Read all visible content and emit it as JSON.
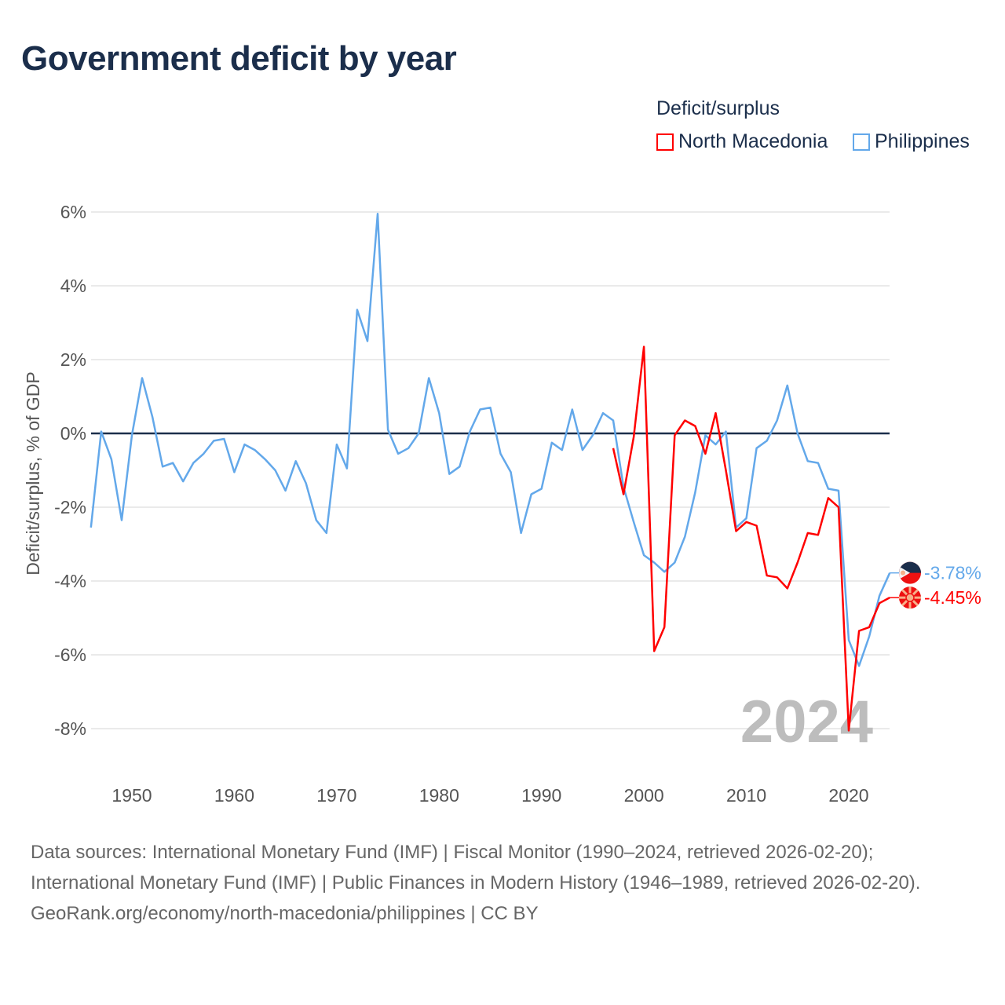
{
  "title": "Government deficit by year",
  "legend": {
    "title": "Deficit/surplus",
    "items": [
      {
        "label": "North Macedonia",
        "color": "#ff0000"
      },
      {
        "label": "Philippines",
        "color": "#63a8ea"
      }
    ]
  },
  "chart_data": {
    "type": "line",
    "title": "Government deficit by year",
    "xlabel": "",
    "ylabel": "Deficit/surplus, % of GDP",
    "ylim": [
      -9,
      6.5
    ],
    "xlim": [
      1946,
      2024
    ],
    "yticks": [
      6,
      4,
      2,
      0,
      -2,
      -4,
      -6,
      -8
    ],
    "ytick_labels": [
      "6%",
      "4%",
      "2%",
      "0%",
      "-2%",
      "-4%",
      "-6%",
      "-8%"
    ],
    "xticks": [
      1950,
      1960,
      1970,
      1980,
      1990,
      2000,
      2010,
      2020
    ],
    "xtick_labels": [
      "1950",
      "1960",
      "1970",
      "1980",
      "1990",
      "2000",
      "2010",
      "2020"
    ],
    "grid": true,
    "year_watermark": "2024",
    "series": [
      {
        "name": "Philippines",
        "color": "#63a8ea",
        "start": 1946,
        "end_label": "-3.78%",
        "values": [
          -2.55,
          0.05,
          -0.7,
          -2.35,
          -0.05,
          1.5,
          0.45,
          -0.9,
          -0.8,
          -1.3,
          -0.8,
          -0.55,
          -0.2,
          -0.15,
          -1.05,
          -0.3,
          -0.45,
          -0.7,
          -1.0,
          -1.55,
          -0.75,
          -1.35,
          -2.35,
          -2.7,
          -0.3,
          -0.95,
          3.35,
          2.5,
          5.95,
          0.1,
          -0.55,
          -0.4,
          0.0,
          1.5,
          0.55,
          -1.1,
          -0.9,
          0.05,
          0.65,
          0.7,
          -0.55,
          -1.05,
          -2.7,
          -1.65,
          -1.5,
          -0.25,
          -0.45,
          0.65,
          -0.45,
          -0.05,
          0.55,
          0.35,
          -1.45,
          -2.4,
          -3.3,
          -3.5,
          -3.75,
          -3.5,
          -2.8,
          -1.6,
          -0.05,
          -0.3,
          0.05,
          -2.55,
          -2.3,
          -0.4,
          -0.2,
          0.35,
          1.3,
          0.0,
          -0.75,
          -0.8,
          -1.5,
          -1.55,
          -5.6,
          -6.3,
          -5.5,
          -4.4,
          -3.78
        ]
      },
      {
        "name": "North Macedonia",
        "color": "#ff0000",
        "start": 1997,
        "end_label": "-4.45%",
        "values": [
          -0.4,
          -1.65,
          -0.1,
          2.35,
          -5.9,
          -5.25,
          -0.05,
          0.35,
          0.2,
          -0.55,
          0.55,
          -1.0,
          -2.65,
          -2.4,
          -2.5,
          -3.85,
          -3.9,
          -4.2,
          -3.5,
          -2.7,
          -2.75,
          -1.75,
          -2.0,
          -8.05,
          -5.35,
          -5.25,
          -4.6,
          -4.45
        ]
      }
    ]
  },
  "footer": {
    "sources": "Data sources: International Monetary Fund (IMF) | Fiscal Monitor (1990–2024, retrieved 2026-02-20); International Monetary Fund (IMF) | Public Finances in Modern History (1946–1989, retrieved 2026-02-20).",
    "link": "GeoRank.org/economy/north-macedonia/philippines",
    "license": " | CC BY"
  }
}
